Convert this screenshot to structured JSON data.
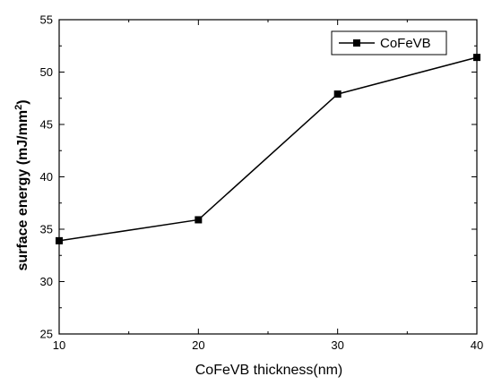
{
  "chart_data": {
    "type": "line",
    "xlabel": "CoFeVB thickness(nm)",
    "ylabel_main": "surface energy (mJ/mm",
    "ylabel_sup": "2",
    "ylabel_end": ")",
    "xlim": [
      10,
      40
    ],
    "ylim": [
      25,
      55
    ],
    "xticks": [
      10,
      20,
      30,
      40
    ],
    "yticks": [
      25,
      30,
      35,
      40,
      45,
      50,
      55
    ],
    "grid": false,
    "legend_position": "top-right",
    "series": [
      {
        "name": "CoFeVB",
        "marker": "square",
        "color": "#000000",
        "x": [
          10,
          20,
          30,
          40
        ],
        "y": [
          33.9,
          35.9,
          47.9,
          51.4
        ]
      }
    ]
  }
}
